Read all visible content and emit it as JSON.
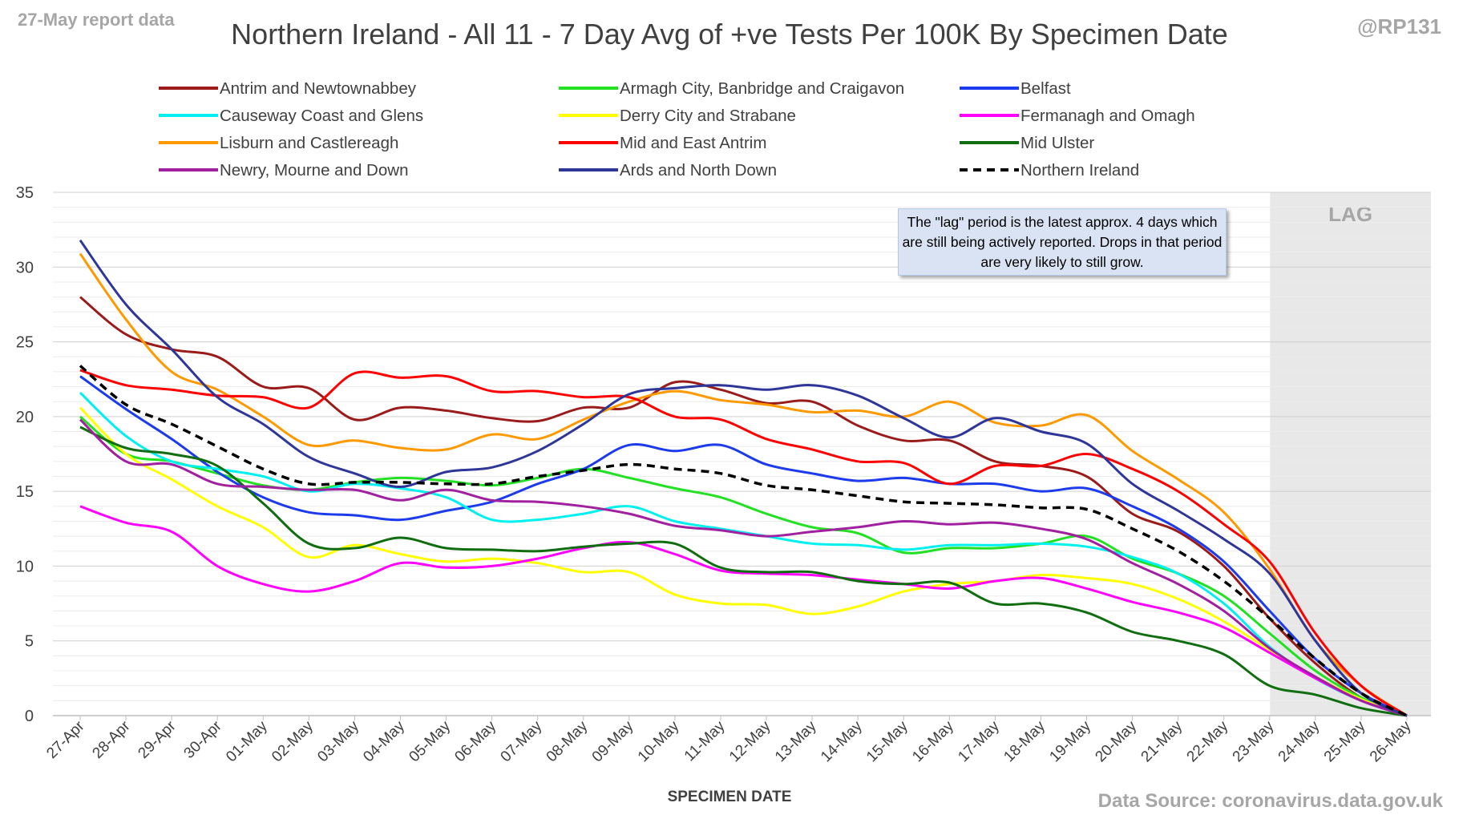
{
  "report_label": "27-May report data",
  "handle": "@RP131",
  "source": "Data Source: coronavirus.data.gov.uk",
  "lag_label": "LAG",
  "note": "The \"lag\" period is the latest approx. 4 days which are still being actively reported.  Drops in that period are very likely to still grow.",
  "chart_data": {
    "type": "line",
    "title": "Northern Ireland - All 11 - 7 Day Avg of +ve Tests Per 100K By Specimen Date",
    "xlabel": "SPECIMEN DATE",
    "ylabel": "",
    "ylim": [
      0,
      35
    ],
    "yticks": [
      0,
      5,
      10,
      15,
      20,
      25,
      30,
      35
    ],
    "grid": true,
    "legend_position": "top",
    "lag_period": [
      "23-May",
      "26-May"
    ],
    "x": [
      "27-Apr",
      "28-Apr",
      "29-Apr",
      "30-Apr",
      "01-May",
      "02-May",
      "03-May",
      "04-May",
      "05-May",
      "06-May",
      "07-May",
      "08-May",
      "09-May",
      "10-May",
      "11-May",
      "12-May",
      "13-May",
      "14-May",
      "15-May",
      "16-May",
      "17-May",
      "18-May",
      "19-May",
      "20-May",
      "21-May",
      "22-May",
      "23-May",
      "24-May",
      "25-May",
      "26-May"
    ],
    "series": [
      {
        "name": "Antrim and Newtownabbey",
        "color": "#9b1b1b",
        "dash": false,
        "values": [
          28.0,
          25.5,
          24.5,
          24.0,
          22.0,
          21.9,
          19.8,
          20.6,
          20.4,
          19.9,
          19.7,
          20.6,
          20.6,
          22.3,
          21.8,
          20.9,
          21.0,
          19.4,
          18.4,
          18.4,
          17.0,
          16.7,
          16.0,
          13.5,
          12.3,
          10.0,
          6.5,
          3.5,
          1.2,
          0.0
        ]
      },
      {
        "name": "Armagh City, Banbridge and Craigavon",
        "color": "#22e022",
        "dash": false,
        "values": [
          20.0,
          17.5,
          17.0,
          16.2,
          15.4,
          15.1,
          15.6,
          15.9,
          15.7,
          15.4,
          15.9,
          16.5,
          15.9,
          15.2,
          14.6,
          13.5,
          12.6,
          12.2,
          10.9,
          11.2,
          11.2,
          11.5,
          12.0,
          10.5,
          9.5,
          8.0,
          5.5,
          3.0,
          1.2,
          0.0
        ]
      },
      {
        "name": "Belfast",
        "color": "#1c3bec",
        "dash": false,
        "values": [
          22.7,
          20.5,
          18.5,
          16.3,
          14.6,
          13.6,
          13.4,
          13.1,
          13.7,
          14.3,
          15.5,
          16.5,
          18.1,
          17.7,
          18.1,
          16.8,
          16.2,
          15.7,
          15.9,
          15.5,
          15.5,
          15.0,
          15.2,
          14.0,
          12.5,
          10.3,
          7.0,
          3.8,
          1.5,
          0.0
        ]
      },
      {
        "name": "Causeway Coast and Glens",
        "color": "#00f0f0",
        "dash": false,
        "values": [
          21.6,
          18.7,
          17.0,
          16.5,
          16.0,
          15.0,
          15.5,
          15.2,
          14.6,
          13.1,
          13.1,
          13.5,
          14.0,
          13.0,
          12.5,
          12.0,
          11.5,
          11.4,
          11.1,
          11.4,
          11.4,
          11.5,
          11.3,
          10.6,
          9.5,
          7.5,
          4.6,
          2.5,
          1.0,
          0.0
        ]
      },
      {
        "name": "Derry City and Strabane",
        "color": "#ffff00",
        "dash": false,
        "values": [
          20.6,
          17.5,
          15.8,
          14.0,
          12.6,
          10.6,
          11.4,
          10.8,
          10.3,
          10.5,
          10.2,
          9.6,
          9.6,
          8.1,
          7.5,
          7.4,
          6.8,
          7.3,
          8.3,
          8.8,
          9.0,
          9.4,
          9.2,
          8.8,
          7.8,
          6.3,
          4.4,
          2.6,
          1.1,
          0.0
        ]
      },
      {
        "name": "Fermanagh and Omagh",
        "color": "#ff00ff",
        "dash": false,
        "values": [
          14.0,
          12.9,
          12.3,
          10.0,
          8.8,
          8.3,
          9.0,
          10.2,
          9.9,
          10.0,
          10.5,
          11.2,
          11.6,
          10.8,
          9.7,
          9.5,
          9.4,
          9.1,
          8.8,
          8.5,
          9.0,
          9.2,
          8.5,
          7.6,
          6.9,
          5.9,
          4.2,
          2.5,
          1.0,
          0.0
        ]
      },
      {
        "name": "Lisburn and Castlereagh",
        "color": "#ff9900",
        "dash": false,
        "values": [
          30.9,
          26.5,
          23.0,
          21.8,
          20.0,
          18.1,
          18.4,
          17.9,
          17.8,
          18.8,
          18.5,
          19.8,
          21.0,
          21.7,
          21.1,
          20.8,
          20.3,
          20.4,
          20.0,
          21.0,
          19.6,
          19.4,
          20.1,
          17.7,
          15.8,
          13.6,
          9.8,
          5.0,
          2.0,
          0.0
        ]
      },
      {
        "name": "Mid and East Antrim",
        "color": "#ff0000",
        "dash": false,
        "values": [
          23.1,
          22.1,
          21.8,
          21.4,
          21.3,
          20.6,
          22.9,
          22.6,
          22.7,
          21.7,
          21.7,
          21.3,
          21.3,
          20.0,
          19.8,
          18.5,
          17.8,
          17.0,
          16.9,
          15.5,
          16.7,
          16.7,
          17.5,
          16.5,
          15.0,
          12.8,
          10.3,
          5.5,
          2.0,
          0.0
        ]
      },
      {
        "name": "Mid Ulster",
        "color": "#106d10",
        "dash": false,
        "values": [
          19.3,
          17.9,
          17.5,
          16.7,
          14.2,
          11.5,
          11.2,
          11.9,
          11.2,
          11.1,
          11.0,
          11.3,
          11.5,
          11.5,
          9.9,
          9.6,
          9.6,
          9.0,
          8.8,
          8.9,
          7.5,
          7.5,
          6.9,
          5.6,
          5.0,
          4.1,
          2.0,
          1.4,
          0.5,
          0.0
        ]
      },
      {
        "name": "Newry, Mourne and Down",
        "color": "#a020a0",
        "dash": false,
        "values": [
          19.8,
          17.0,
          16.8,
          15.5,
          15.3,
          15.1,
          15.1,
          14.4,
          15.1,
          14.4,
          14.3,
          14.0,
          13.5,
          12.7,
          12.4,
          12.0,
          12.3,
          12.6,
          13.0,
          12.8,
          12.9,
          12.5,
          11.8,
          10.2,
          8.8,
          7.0,
          4.5,
          2.6,
          1.0,
          0.0
        ]
      },
      {
        "name": "Ards and North Down",
        "color": "#2f3699",
        "dash": false,
        "values": [
          31.8,
          27.5,
          24.5,
          21.3,
          19.5,
          17.3,
          16.2,
          15.3,
          16.3,
          16.6,
          17.7,
          19.5,
          21.5,
          21.9,
          22.1,
          21.8,
          22.1,
          21.4,
          19.9,
          18.6,
          19.9,
          19.0,
          18.2,
          15.5,
          13.7,
          11.8,
          9.5,
          5.0,
          1.5,
          0.0
        ]
      },
      {
        "name": "Northern Ireland",
        "color": "#000000",
        "dash": true,
        "values": [
          23.4,
          20.8,
          19.5,
          18.0,
          16.5,
          15.5,
          15.6,
          15.6,
          15.5,
          15.5,
          16.0,
          16.4,
          16.8,
          16.5,
          16.2,
          15.4,
          15.1,
          14.7,
          14.3,
          14.2,
          14.1,
          13.9,
          13.8,
          12.5,
          11.0,
          9.0,
          6.5,
          3.8,
          1.5,
          0.0
        ]
      }
    ]
  }
}
